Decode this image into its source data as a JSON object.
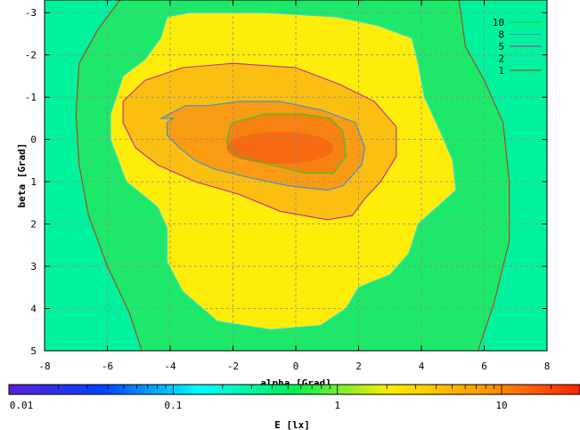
{
  "chart_data": {
    "type": "heatmap",
    "title": "",
    "xlabel": "alpha [Grad]",
    "ylabel": "beta [Grad]",
    "xlim": [
      -8,
      8
    ],
    "ylim": [
      -3.3,
      5
    ],
    "y_axis_inverted": true,
    "x_ticks": [
      -8,
      -6,
      -4,
      -2,
      0,
      2,
      4,
      6,
      8
    ],
    "y_ticks": [
      -3,
      -2,
      -1,
      0,
      1,
      2,
      3,
      4,
      5
    ],
    "grid": true,
    "legend_position": "top-right",
    "contour_levels": [
      {
        "name": "10",
        "value": 10,
        "color": "#2ec82e"
      },
      {
        "name": "8",
        "value": 8,
        "color": "#3a8fd8"
      },
      {
        "name": "5",
        "value": 5,
        "color": "#c0289a"
      },
      {
        "name": "2",
        "value": 2,
        "color": "#29e0dc"
      },
      {
        "name": "1",
        "value": 1,
        "color": "#a8441e"
      }
    ],
    "peak": {
      "x": -0.5,
      "y": 0.2,
      "value": 16
    },
    "colorbar": {
      "label": "E [lx]",
      "scale": "log",
      "range": [
        0.01,
        30
      ],
      "ticks": [
        {
          "value": 0.01,
          "label": "0.01"
        },
        {
          "value": 0.1,
          "label": "0.1"
        },
        {
          "value": 1,
          "label": "1"
        },
        {
          "value": 10,
          "label": "10"
        }
      ],
      "colors": [
        "#5b1fd6",
        "#0044ff",
        "#00ffff",
        "#00ee55",
        "#ffee00",
        "#ff9900",
        "#ff2200"
      ]
    }
  }
}
